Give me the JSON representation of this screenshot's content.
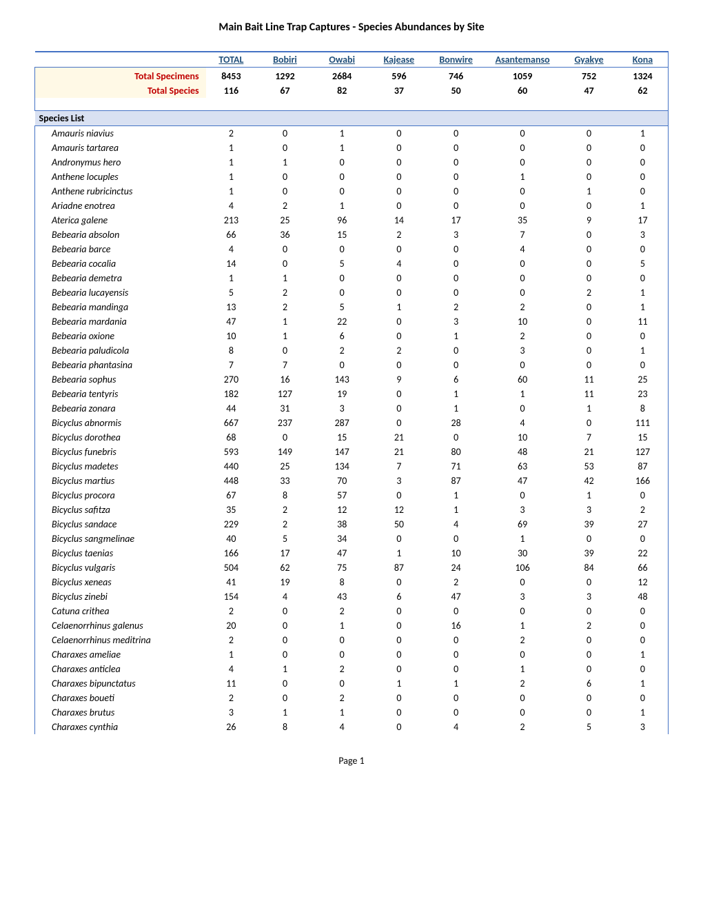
{
  "title": "Main Bait Line Trap Captures - Species Abundances by Site",
  "page_label": "Page 1",
  "columns": [
    "TOTAL",
    "Bobiri",
    "Owabi",
    "Kajease",
    "Bonwire",
    "Asantemanso",
    "Gyakye",
    "Kona"
  ],
  "totals": {
    "specimens_label": "Total Specimens",
    "specimens": [
      "8453",
      "1292",
      "2684",
      "596",
      "746",
      "1059",
      "752",
      "1324"
    ],
    "species_label": "Total Species",
    "species": [
      "116",
      "67",
      "82",
      "37",
      "50",
      "60",
      "47",
      "62"
    ]
  },
  "species_header": "Species List",
  "species": [
    {
      "name": "Amauris niavius",
      "v": [
        "2",
        "0",
        "1",
        "0",
        "0",
        "0",
        "0",
        "1"
      ]
    },
    {
      "name": "Amauris tartarea",
      "v": [
        "1",
        "0",
        "1",
        "0",
        "0",
        "0",
        "0",
        "0"
      ]
    },
    {
      "name": "Andronymus hero",
      "v": [
        "1",
        "1",
        "0",
        "0",
        "0",
        "0",
        "0",
        "0"
      ]
    },
    {
      "name": "Anthene locuples",
      "v": [
        "1",
        "0",
        "0",
        "0",
        "0",
        "1",
        "0",
        "0"
      ]
    },
    {
      "name": "Anthene rubricinctus",
      "v": [
        "1",
        "0",
        "0",
        "0",
        "0",
        "0",
        "1",
        "0"
      ]
    },
    {
      "name": "Ariadne enotrea",
      "v": [
        "4",
        "2",
        "1",
        "0",
        "0",
        "0",
        "0",
        "1"
      ]
    },
    {
      "name": "Aterica galene",
      "v": [
        "213",
        "25",
        "96",
        "14",
        "17",
        "35",
        "9",
        "17"
      ]
    },
    {
      "name": "Bebearia absolon",
      "v": [
        "66",
        "36",
        "15",
        "2",
        "3",
        "7",
        "0",
        "3"
      ]
    },
    {
      "name": "Bebearia barce",
      "v": [
        "4",
        "0",
        "0",
        "0",
        "0",
        "4",
        "0",
        "0"
      ]
    },
    {
      "name": "Bebearia cocalia",
      "v": [
        "14",
        "0",
        "5",
        "4",
        "0",
        "0",
        "0",
        "5"
      ]
    },
    {
      "name": "Bebearia demetra",
      "v": [
        "1",
        "1",
        "0",
        "0",
        "0",
        "0",
        "0",
        "0"
      ]
    },
    {
      "name": "Bebearia lucayensis",
      "v": [
        "5",
        "2",
        "0",
        "0",
        "0",
        "0",
        "2",
        "1"
      ]
    },
    {
      "name": "Bebearia mandinga",
      "v": [
        "13",
        "2",
        "5",
        "1",
        "2",
        "2",
        "0",
        "1"
      ]
    },
    {
      "name": "Bebearia mardania",
      "v": [
        "47",
        "1",
        "22",
        "0",
        "3",
        "10",
        "0",
        "11"
      ]
    },
    {
      "name": "Bebearia oxione",
      "v": [
        "10",
        "1",
        "6",
        "0",
        "1",
        "2",
        "0",
        "0"
      ]
    },
    {
      "name": "Bebearia paludicola",
      "v": [
        "8",
        "0",
        "2",
        "2",
        "0",
        "3",
        "0",
        "1"
      ]
    },
    {
      "name": "Bebearia phantasina",
      "v": [
        "7",
        "7",
        "0",
        "0",
        "0",
        "0",
        "0",
        "0"
      ]
    },
    {
      "name": "Bebearia sophus",
      "v": [
        "270",
        "16",
        "143",
        "9",
        "6",
        "60",
        "11",
        "25"
      ]
    },
    {
      "name": "Bebearia tentyris",
      "v": [
        "182",
        "127",
        "19",
        "0",
        "1",
        "1",
        "11",
        "23"
      ]
    },
    {
      "name": "Bebearia zonara",
      "v": [
        "44",
        "31",
        "3",
        "0",
        "1",
        "0",
        "1",
        "8"
      ]
    },
    {
      "name": "Bicyclus abnormis",
      "v": [
        "667",
        "237",
        "287",
        "0",
        "28",
        "4",
        "0",
        "111"
      ]
    },
    {
      "name": "Bicyclus dorothea",
      "v": [
        "68",
        "0",
        "15",
        "21",
        "0",
        "10",
        "7",
        "15"
      ]
    },
    {
      "name": "Bicyclus funebris",
      "v": [
        "593",
        "149",
        "147",
        "21",
        "80",
        "48",
        "21",
        "127"
      ]
    },
    {
      "name": "Bicyclus madetes",
      "v": [
        "440",
        "25",
        "134",
        "7",
        "71",
        "63",
        "53",
        "87"
      ]
    },
    {
      "name": "Bicyclus martius",
      "v": [
        "448",
        "33",
        "70",
        "3",
        "87",
        "47",
        "42",
        "166"
      ]
    },
    {
      "name": "Bicyclus procora",
      "v": [
        "67",
        "8",
        "57",
        "0",
        "1",
        "0",
        "1",
        "0"
      ]
    },
    {
      "name": "Bicyclus safitza",
      "v": [
        "35",
        "2",
        "12",
        "12",
        "1",
        "3",
        "3",
        "2"
      ]
    },
    {
      "name": "Bicyclus sandace",
      "v": [
        "229",
        "2",
        "38",
        "50",
        "4",
        "69",
        "39",
        "27"
      ]
    },
    {
      "name": "Bicyclus sangmelinae",
      "v": [
        "40",
        "5",
        "34",
        "0",
        "0",
        "1",
        "0",
        "0"
      ]
    },
    {
      "name": "Bicyclus taenias",
      "v": [
        "166",
        "17",
        "47",
        "1",
        "10",
        "30",
        "39",
        "22"
      ]
    },
    {
      "name": "Bicyclus vulgaris",
      "v": [
        "504",
        "62",
        "75",
        "87",
        "24",
        "106",
        "84",
        "66"
      ]
    },
    {
      "name": "Bicyclus xeneas",
      "v": [
        "41",
        "19",
        "8",
        "0",
        "2",
        "0",
        "0",
        "12"
      ]
    },
    {
      "name": "Bicyclus zinebi",
      "v": [
        "154",
        "4",
        "43",
        "6",
        "47",
        "3",
        "3",
        "48"
      ]
    },
    {
      "name": "Catuna crithea",
      "v": [
        "2",
        "0",
        "2",
        "0",
        "0",
        "0",
        "0",
        "0"
      ]
    },
    {
      "name": "Celaenorrhinus galenus",
      "v": [
        "20",
        "0",
        "1",
        "0",
        "16",
        "1",
        "2",
        "0"
      ]
    },
    {
      "name": "Celaenorrhinus meditrina",
      "v": [
        "2",
        "0",
        "0",
        "0",
        "0",
        "2",
        "0",
        "0"
      ]
    },
    {
      "name": "Charaxes ameliae",
      "v": [
        "1",
        "0",
        "0",
        "0",
        "0",
        "0",
        "0",
        "1"
      ]
    },
    {
      "name": "Charaxes anticlea",
      "v": [
        "4",
        "1",
        "2",
        "0",
        "0",
        "1",
        "0",
        "0"
      ]
    },
    {
      "name": "Charaxes bipunctatus",
      "v": [
        "11",
        "0",
        "0",
        "1",
        "1",
        "2",
        "6",
        "1"
      ]
    },
    {
      "name": "Charaxes boueti",
      "v": [
        "2",
        "0",
        "2",
        "0",
        "0",
        "0",
        "0",
        "0"
      ]
    },
    {
      "name": "Charaxes brutus",
      "v": [
        "3",
        "1",
        "1",
        "0",
        "0",
        "0",
        "0",
        "1"
      ]
    },
    {
      "name": "Charaxes cynthia",
      "v": [
        "26",
        "8",
        "4",
        "0",
        "4",
        "2",
        "5",
        "3"
      ]
    }
  ],
  "column_widths": [
    "27%",
    "8%",
    "9%",
    "9%",
    "9%",
    "9%",
    "12%",
    "9%",
    "8%"
  ]
}
